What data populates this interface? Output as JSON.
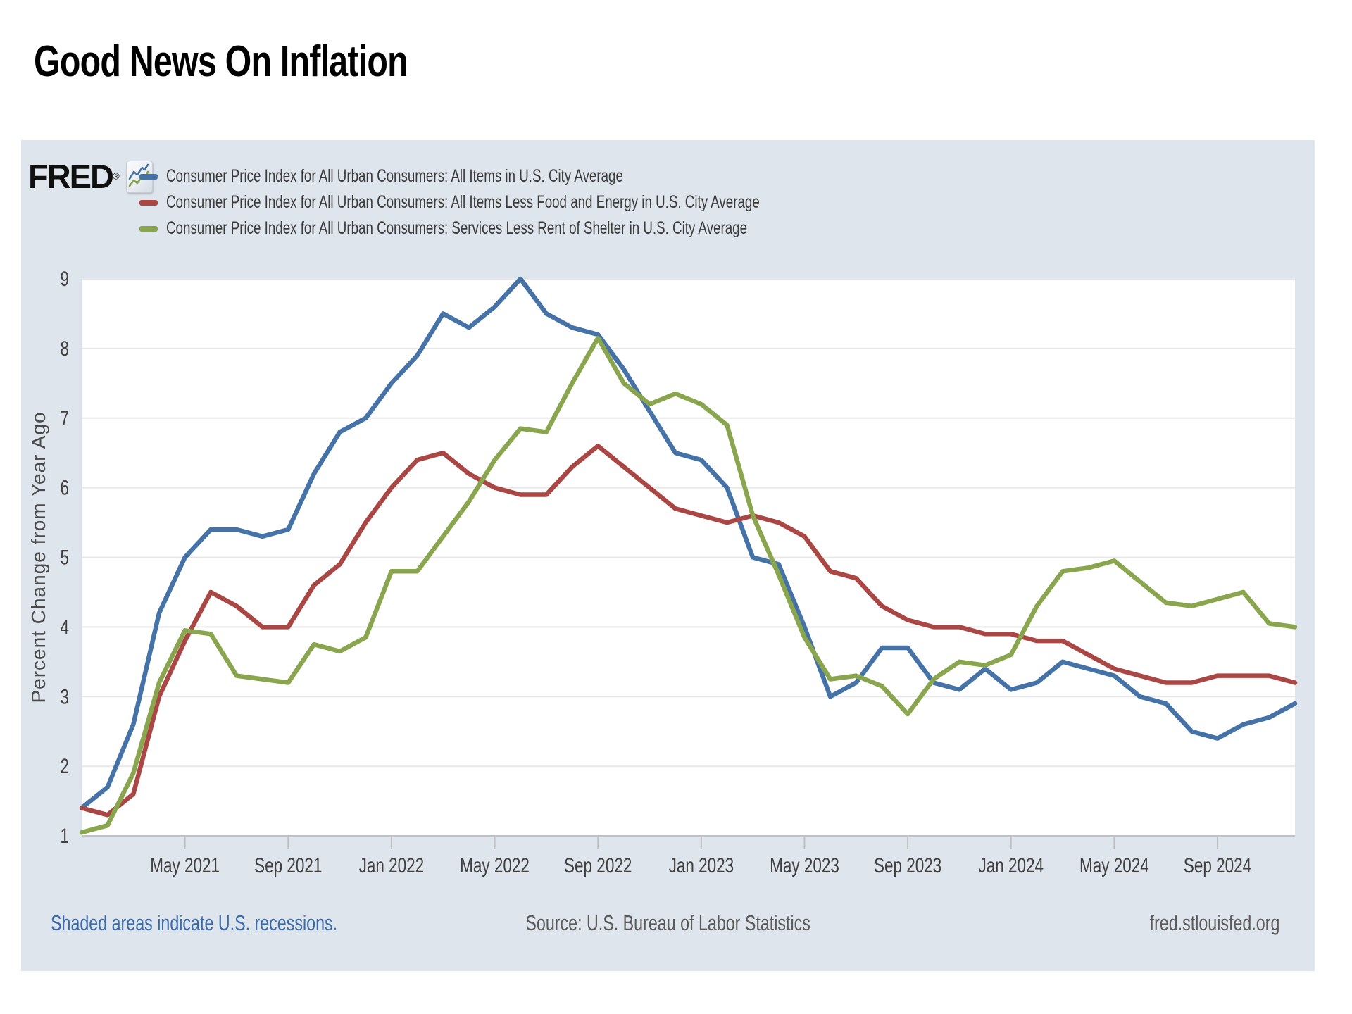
{
  "page": {
    "title": "Good News On Inflation"
  },
  "panel": {
    "logo": {
      "text": "FRED",
      "registered": "®",
      "icon": "fred-squiggle-icon"
    },
    "footer": {
      "left": "Shaded areas indicate U.S. recessions.",
      "center": "Source: U.S. Bureau of Labor Statistics",
      "right": "fred.stlouisfed.org"
    }
  },
  "colors": {
    "panel_background": "#dfe5ed",
    "plot_background": "#ffffff",
    "gridline": "#e8e8e8",
    "axis": "#c0c0c0",
    "tick_text": "#404040",
    "blue": "#4572a7",
    "red": "#aa4643",
    "green": "#89a54e",
    "link_blue": "#3a6bab"
  },
  "chart_data": {
    "type": "line",
    "title": "",
    "xlabel": "",
    "ylabel": "Percent Change from Year Ago",
    "ylim": [
      1,
      9
    ],
    "y_ticks": [
      "1",
      "2",
      "3",
      "4",
      "5",
      "6",
      "7",
      "8",
      "9"
    ],
    "grid": "horizontal",
    "legend_position": "top-left",
    "x_range": {
      "start": "Jan 2021",
      "end": "Dec 2024",
      "frequency": "monthly",
      "points": 48
    },
    "x_tick_labels": [
      "May 2021",
      "Sep 2021",
      "Jan 2022",
      "May 2022",
      "Sep 2022",
      "Jan 2023",
      "May 2023",
      "Sep 2023",
      "Jan 2024",
      "May 2024",
      "Sep 2024"
    ],
    "x_tick_month_indices": [
      4,
      8,
      12,
      16,
      20,
      24,
      28,
      32,
      36,
      40,
      44
    ],
    "series": [
      {
        "id": "all-items",
        "name": "Consumer Price Index for All Urban Consumers: All Items in U.S. City Average",
        "color": "#4572a7",
        "values": [
          1.4,
          1.7,
          2.6,
          4.2,
          5.0,
          5.4,
          5.4,
          5.3,
          5.4,
          6.2,
          6.8,
          7.0,
          7.5,
          7.9,
          8.5,
          8.3,
          8.6,
          9.0,
          8.5,
          8.3,
          8.2,
          7.7,
          7.1,
          6.5,
          6.4,
          6.0,
          5.0,
          4.9,
          4.0,
          3.0,
          3.2,
          3.7,
          3.7,
          3.2,
          3.1,
          3.4,
          3.1,
          3.2,
          3.5,
          3.4,
          3.3,
          3.0,
          2.9,
          2.5,
          2.4,
          2.6,
          2.7,
          2.9
        ]
      },
      {
        "id": "all-items-less-food-energy",
        "name": "Consumer Price Index for All Urban Consumers: All Items Less Food and Energy in U.S. City Average",
        "color": "#aa4643",
        "values": [
          1.4,
          1.3,
          1.6,
          3.0,
          3.8,
          4.5,
          4.3,
          4.0,
          4.0,
          4.6,
          4.9,
          5.5,
          6.0,
          6.4,
          6.5,
          6.2,
          6.0,
          5.9,
          5.9,
          6.3,
          6.6,
          6.3,
          6.0,
          5.7,
          5.6,
          5.5,
          5.6,
          5.5,
          5.3,
          4.8,
          4.7,
          4.3,
          4.1,
          4.0,
          4.0,
          3.9,
          3.9,
          3.8,
          3.8,
          3.6,
          3.4,
          3.3,
          3.2,
          3.2,
          3.3,
          3.3,
          3.3,
          3.2
        ]
      },
      {
        "id": "services-less-rent-of-shelter",
        "name": "Consumer Price Index for All Urban Consumers: Services Less Rent of Shelter in U.S. City Average",
        "color": "#89a54e",
        "values": [
          1.05,
          1.15,
          1.9,
          3.2,
          3.95,
          3.9,
          3.3,
          3.25,
          3.2,
          3.75,
          3.65,
          3.85,
          4.8,
          4.8,
          5.3,
          5.8,
          6.4,
          6.85,
          6.8,
          7.5,
          8.15,
          7.5,
          7.2,
          7.35,
          7.2,
          6.9,
          5.6,
          4.75,
          3.85,
          3.25,
          3.3,
          3.15,
          2.75,
          3.25,
          3.5,
          3.45,
          3.6,
          4.3,
          4.8,
          4.85,
          4.95,
          4.65,
          4.35,
          4.3,
          4.4,
          4.5,
          4.05,
          4.0
        ]
      }
    ]
  }
}
